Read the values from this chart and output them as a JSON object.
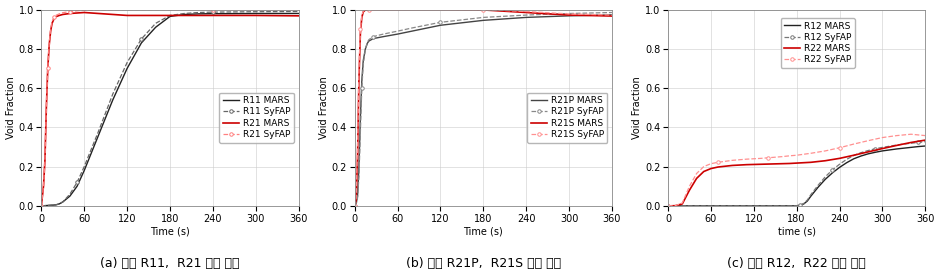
{
  "fig_width": 9.4,
  "fig_height": 2.78,
  "dpi": 100,
  "subplots": [
    {
      "title": "(a) 격실 R11,  R21 내부 수위",
      "xlabel": "Time (s)",
      "ylabel": "Void Fraction",
      "xlim": [
        0,
        360
      ],
      "ylim": [
        0.0,
        1.0
      ],
      "xticks": [
        0,
        60,
        120,
        180,
        240,
        300,
        360
      ],
      "yticks": [
        0.0,
        0.2,
        0.4,
        0.6,
        0.8,
        1.0
      ],
      "series": [
        {
          "label": "R11 MARS",
          "color": "#222222",
          "linestyle": "-",
          "marker": null,
          "lw": 1.0,
          "points_x": [
            0,
            20,
            25,
            30,
            40,
            50,
            60,
            80,
            100,
            120,
            140,
            160,
            180,
            200,
            220,
            240,
            300,
            360
          ],
          "points_y": [
            0,
            0.005,
            0.01,
            0.02,
            0.05,
            0.1,
            0.18,
            0.36,
            0.54,
            0.7,
            0.83,
            0.91,
            0.965,
            0.975,
            0.978,
            0.979,
            0.98,
            0.98
          ]
        },
        {
          "label": "R11 SyFAP",
          "color": "#666666",
          "linestyle": "--",
          "marker": "o",
          "markersize": 2.5,
          "markevery": 5,
          "lw": 0.9,
          "points_x": [
            0,
            20,
            25,
            30,
            40,
            50,
            60,
            80,
            100,
            120,
            140,
            160,
            180,
            200,
            220,
            240,
            300,
            360
          ],
          "points_y": [
            0,
            0.005,
            0.01,
            0.02,
            0.06,
            0.12,
            0.2,
            0.38,
            0.57,
            0.73,
            0.85,
            0.93,
            0.97,
            0.98,
            0.985,
            0.987,
            0.989,
            0.99
          ]
        },
        {
          "label": "R21 MARS",
          "color": "#cc0000",
          "linestyle": "-",
          "marker": null,
          "lw": 1.2,
          "points_x": [
            0,
            3,
            5,
            7,
            9,
            11,
            13,
            15,
            18,
            20,
            25,
            30,
            40,
            60,
            120,
            180,
            240,
            300,
            360
          ],
          "points_y": [
            0,
            0.1,
            0.23,
            0.5,
            0.7,
            0.82,
            0.89,
            0.93,
            0.955,
            0.963,
            0.97,
            0.975,
            0.98,
            0.985,
            0.97,
            0.97,
            0.97,
            0.97,
            0.968
          ]
        },
        {
          "label": "R21 SyFAP",
          "color": "#ff8080",
          "linestyle": "--",
          "marker": "o",
          "markersize": 2.5,
          "markevery": 4,
          "lw": 0.9,
          "points_x": [
            0,
            3,
            5,
            7,
            9,
            11,
            13,
            15,
            18,
            20,
            25,
            30,
            40,
            60,
            120,
            180,
            240,
            300,
            360
          ],
          "points_y": [
            0,
            0.1,
            0.23,
            0.5,
            0.7,
            0.83,
            0.9,
            0.94,
            0.96,
            0.97,
            0.978,
            0.984,
            0.99,
            0.997,
            1.0,
            1.0,
            1.0,
            1.0,
            1.0
          ]
        }
      ]
    },
    {
      "title": "(b) 격실 R21P,  R21S 내부 수위",
      "xlabel": "Time (s)",
      "ylabel": "Void Fraction",
      "xlim": [
        0,
        360
      ],
      "ylim": [
        0.0,
        1.0
      ],
      "xticks": [
        0,
        60,
        120,
        180,
        240,
        300,
        360
      ],
      "yticks": [
        0.0,
        0.2,
        0.4,
        0.6,
        0.8,
        1.0
      ],
      "series": [
        {
          "label": "R21P MARS",
          "color": "#444444",
          "linestyle": "-",
          "marker": null,
          "lw": 1.0,
          "points_x": [
            0,
            2,
            4,
            6,
            8,
            10,
            12,
            15,
            18,
            20,
            25,
            30,
            40,
            60,
            80,
            120,
            180,
            240,
            300,
            360
          ],
          "points_y": [
            0,
            0.01,
            0.05,
            0.2,
            0.45,
            0.64,
            0.74,
            0.8,
            0.83,
            0.84,
            0.85,
            0.855,
            0.862,
            0.875,
            0.89,
            0.92,
            0.945,
            0.96,
            0.968,
            0.973
          ]
        },
        {
          "label": "R21P SyFAP",
          "color": "#888888",
          "linestyle": "--",
          "marker": "o",
          "markersize": 2.5,
          "markevery": 5,
          "lw": 0.9,
          "points_x": [
            0,
            2,
            4,
            6,
            8,
            10,
            12,
            15,
            18,
            20,
            25,
            30,
            40,
            60,
            80,
            120,
            180,
            240,
            300,
            360
          ],
          "points_y": [
            0,
            0.01,
            0.04,
            0.15,
            0.38,
            0.6,
            0.72,
            0.8,
            0.835,
            0.847,
            0.86,
            0.866,
            0.875,
            0.89,
            0.906,
            0.935,
            0.96,
            0.972,
            0.98,
            0.985
          ]
        },
        {
          "label": "R21S MARS",
          "color": "#cc0000",
          "linestyle": "-",
          "marker": null,
          "lw": 1.2,
          "points_x": [
            0,
            2,
            4,
            6,
            8,
            10,
            12,
            15,
            20,
            30,
            60,
            120,
            180,
            240,
            300,
            360
          ],
          "points_y": [
            0,
            0.03,
            0.25,
            0.65,
            0.88,
            0.96,
            0.988,
            0.998,
            1.0,
            1.0,
            1.0,
            1.0,
            0.998,
            0.985,
            0.972,
            0.967
          ]
        },
        {
          "label": "R21S SyFAP",
          "color": "#ff9090",
          "linestyle": "--",
          "marker": "o",
          "markersize": 2.5,
          "markevery": 4,
          "lw": 0.9,
          "points_x": [
            0,
            2,
            4,
            6,
            8,
            10,
            12,
            15,
            20,
            30,
            60,
            120,
            180,
            240,
            300,
            360
          ],
          "points_y": [
            0,
            0.04,
            0.3,
            0.7,
            0.9,
            0.97,
            0.992,
            1.0,
            1.0,
            1.0,
            1.0,
            1.0,
            1.0,
            0.99,
            0.978,
            0.972
          ]
        }
      ]
    },
    {
      "title": "(c) 격실 R12,  R22 내부 수위",
      "xlabel": "time (s)",
      "ylabel": "Void Fraction",
      "xlim": [
        0,
        360
      ],
      "ylim": [
        0.0,
        1.0
      ],
      "xticks": [
        0,
        60,
        120,
        180,
        240,
        300,
        360
      ],
      "yticks": [
        0.0,
        0.2,
        0.4,
        0.6,
        0.8,
        1.0
      ],
      "series": [
        {
          "label": "R12 MARS",
          "color": "#222222",
          "linestyle": "-",
          "marker": null,
          "lw": 1.0,
          "points_x": [
            0,
            50,
            100,
            150,
            175,
            180,
            185,
            190,
            195,
            200,
            210,
            220,
            230,
            240,
            250,
            260,
            270,
            280,
            290,
            300,
            310,
            320,
            330,
            340,
            350,
            360
          ],
          "points_y": [
            0,
            0,
            0,
            0,
            0,
            0.001,
            0.003,
            0.01,
            0.025,
            0.05,
            0.095,
            0.135,
            0.168,
            0.196,
            0.22,
            0.24,
            0.254,
            0.265,
            0.273,
            0.28,
            0.285,
            0.29,
            0.294,
            0.298,
            0.302,
            0.305
          ]
        },
        {
          "label": "R12 SyFAP",
          "color": "#777777",
          "linestyle": "--",
          "marker": "o",
          "markersize": 2.5,
          "markevery": 6,
          "lw": 0.9,
          "points_x": [
            0,
            50,
            100,
            150,
            175,
            180,
            185,
            190,
            195,
            200,
            210,
            220,
            230,
            240,
            250,
            260,
            270,
            280,
            290,
            300,
            310,
            320,
            330,
            340,
            350,
            360
          ],
          "points_y": [
            0,
            0,
            0,
            0,
            0,
            0.001,
            0.004,
            0.012,
            0.03,
            0.058,
            0.105,
            0.148,
            0.183,
            0.212,
            0.237,
            0.257,
            0.271,
            0.282,
            0.291,
            0.298,
            0.304,
            0.31,
            0.315,
            0.319,
            0.323,
            0.327
          ]
        },
        {
          "label": "R22 MARS",
          "color": "#cc0000",
          "linestyle": "-",
          "marker": null,
          "lw": 1.2,
          "points_x": [
            0,
            10,
            20,
            30,
            40,
            50,
            60,
            70,
            80,
            90,
            100,
            110,
            120,
            130,
            140,
            150,
            160,
            170,
            180,
            200,
            220,
            240,
            260,
            280,
            300,
            320,
            340,
            360
          ],
          "points_y": [
            0,
            0.001,
            0.01,
            0.08,
            0.14,
            0.175,
            0.19,
            0.198,
            0.202,
            0.206,
            0.208,
            0.21,
            0.211,
            0.212,
            0.213,
            0.214,
            0.215,
            0.216,
            0.218,
            0.222,
            0.23,
            0.242,
            0.258,
            0.275,
            0.292,
            0.308,
            0.323,
            0.335
          ]
        },
        {
          "label": "R22 SyFAP",
          "color": "#ff9090",
          "linestyle": "--",
          "marker": "o",
          "markersize": 2.5,
          "markevery": 7,
          "lw": 0.9,
          "points_x": [
            0,
            10,
            20,
            30,
            40,
            50,
            60,
            70,
            80,
            90,
            100,
            110,
            120,
            130,
            140,
            150,
            160,
            170,
            180,
            200,
            220,
            240,
            260,
            280,
            300,
            320,
            340,
            360
          ],
          "points_y": [
            0,
            0.001,
            0.015,
            0.1,
            0.165,
            0.2,
            0.215,
            0.222,
            0.227,
            0.232,
            0.235,
            0.238,
            0.24,
            0.242,
            0.245,
            0.248,
            0.251,
            0.255,
            0.258,
            0.268,
            0.28,
            0.296,
            0.315,
            0.332,
            0.348,
            0.358,
            0.365,
            0.358
          ]
        }
      ]
    }
  ],
  "caption_fontsize": 9,
  "axis_label_fontsize": 7,
  "tick_fontsize": 7,
  "legend_fontsize": 6.5,
  "grid_color": "#cccccc",
  "background_color": "#ffffff"
}
